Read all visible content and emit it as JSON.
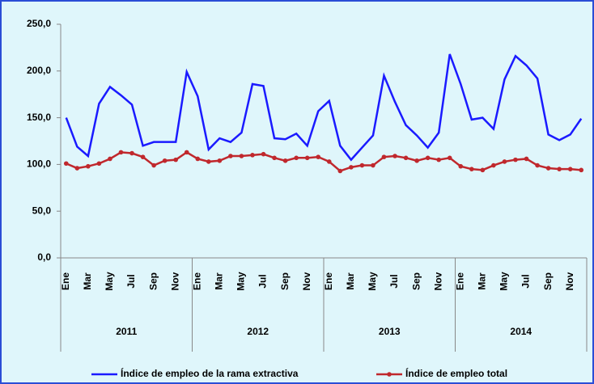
{
  "chart_data": {
    "type": "line",
    "categories": [
      "Ene",
      null,
      "Mar",
      null,
      "May",
      null,
      "Jul",
      null,
      "Sep",
      null,
      "Nov",
      null,
      "Ene",
      null,
      "Mar",
      null,
      "May",
      null,
      "Jul",
      null,
      "Sep",
      null,
      "Nov",
      null,
      "Ene",
      null,
      "Mar",
      null,
      "May",
      null,
      "Jul",
      null,
      "Sep",
      null,
      "Nov",
      null,
      "Ene",
      null,
      "Mar",
      null,
      "May",
      null,
      "Jul",
      null,
      "Sep",
      null,
      "Nov",
      null
    ],
    "groups": [
      "2011",
      "2012",
      "2013",
      "2014"
    ],
    "series": [
      {
        "name": "Índice de empleo de la rama extractiva",
        "color": "#1a1aff",
        "markers": false,
        "values": [
          150,
          119,
          109,
          165,
          183,
          174,
          164,
          120,
          124,
          124,
          124,
          199,
          173,
          116,
          128,
          124,
          134,
          186,
          184,
          128,
          127,
          133,
          120,
          157,
          168,
          120,
          105,
          118,
          131,
          195,
          167,
          142,
          131,
          118,
          134,
          218,
          186,
          148,
          150,
          138,
          191,
          216,
          206,
          192,
          132,
          126,
          132,
          149
        ]
      },
      {
        "name": "Índice de empleo total",
        "color": "#c0282d",
        "markers": true,
        "values": [
          101,
          96,
          98,
          101,
          106,
          113,
          112,
          108,
          99,
          104,
          105,
          113,
          106,
          103,
          104,
          109,
          109,
          110,
          111,
          107,
          104,
          107,
          107,
          108,
          103,
          93,
          97,
          99,
          99,
          108,
          109,
          107,
          104,
          107,
          105,
          107,
          98,
          95,
          94,
          99,
          103,
          105,
          106,
          99,
          96,
          95,
          95,
          94
        ]
      }
    ],
    "ylim": [
      0,
      250
    ],
    "yticks": [
      {
        "value": 0,
        "label": "0,0"
      },
      {
        "value": 50,
        "label": "50,0"
      },
      {
        "value": 100,
        "label": "100,0"
      },
      {
        "value": 150,
        "label": "150,0"
      },
      {
        "value": 200,
        "label": "200,0"
      },
      {
        "value": 250,
        "label": "250,0"
      }
    ],
    "legend": "bottom"
  }
}
